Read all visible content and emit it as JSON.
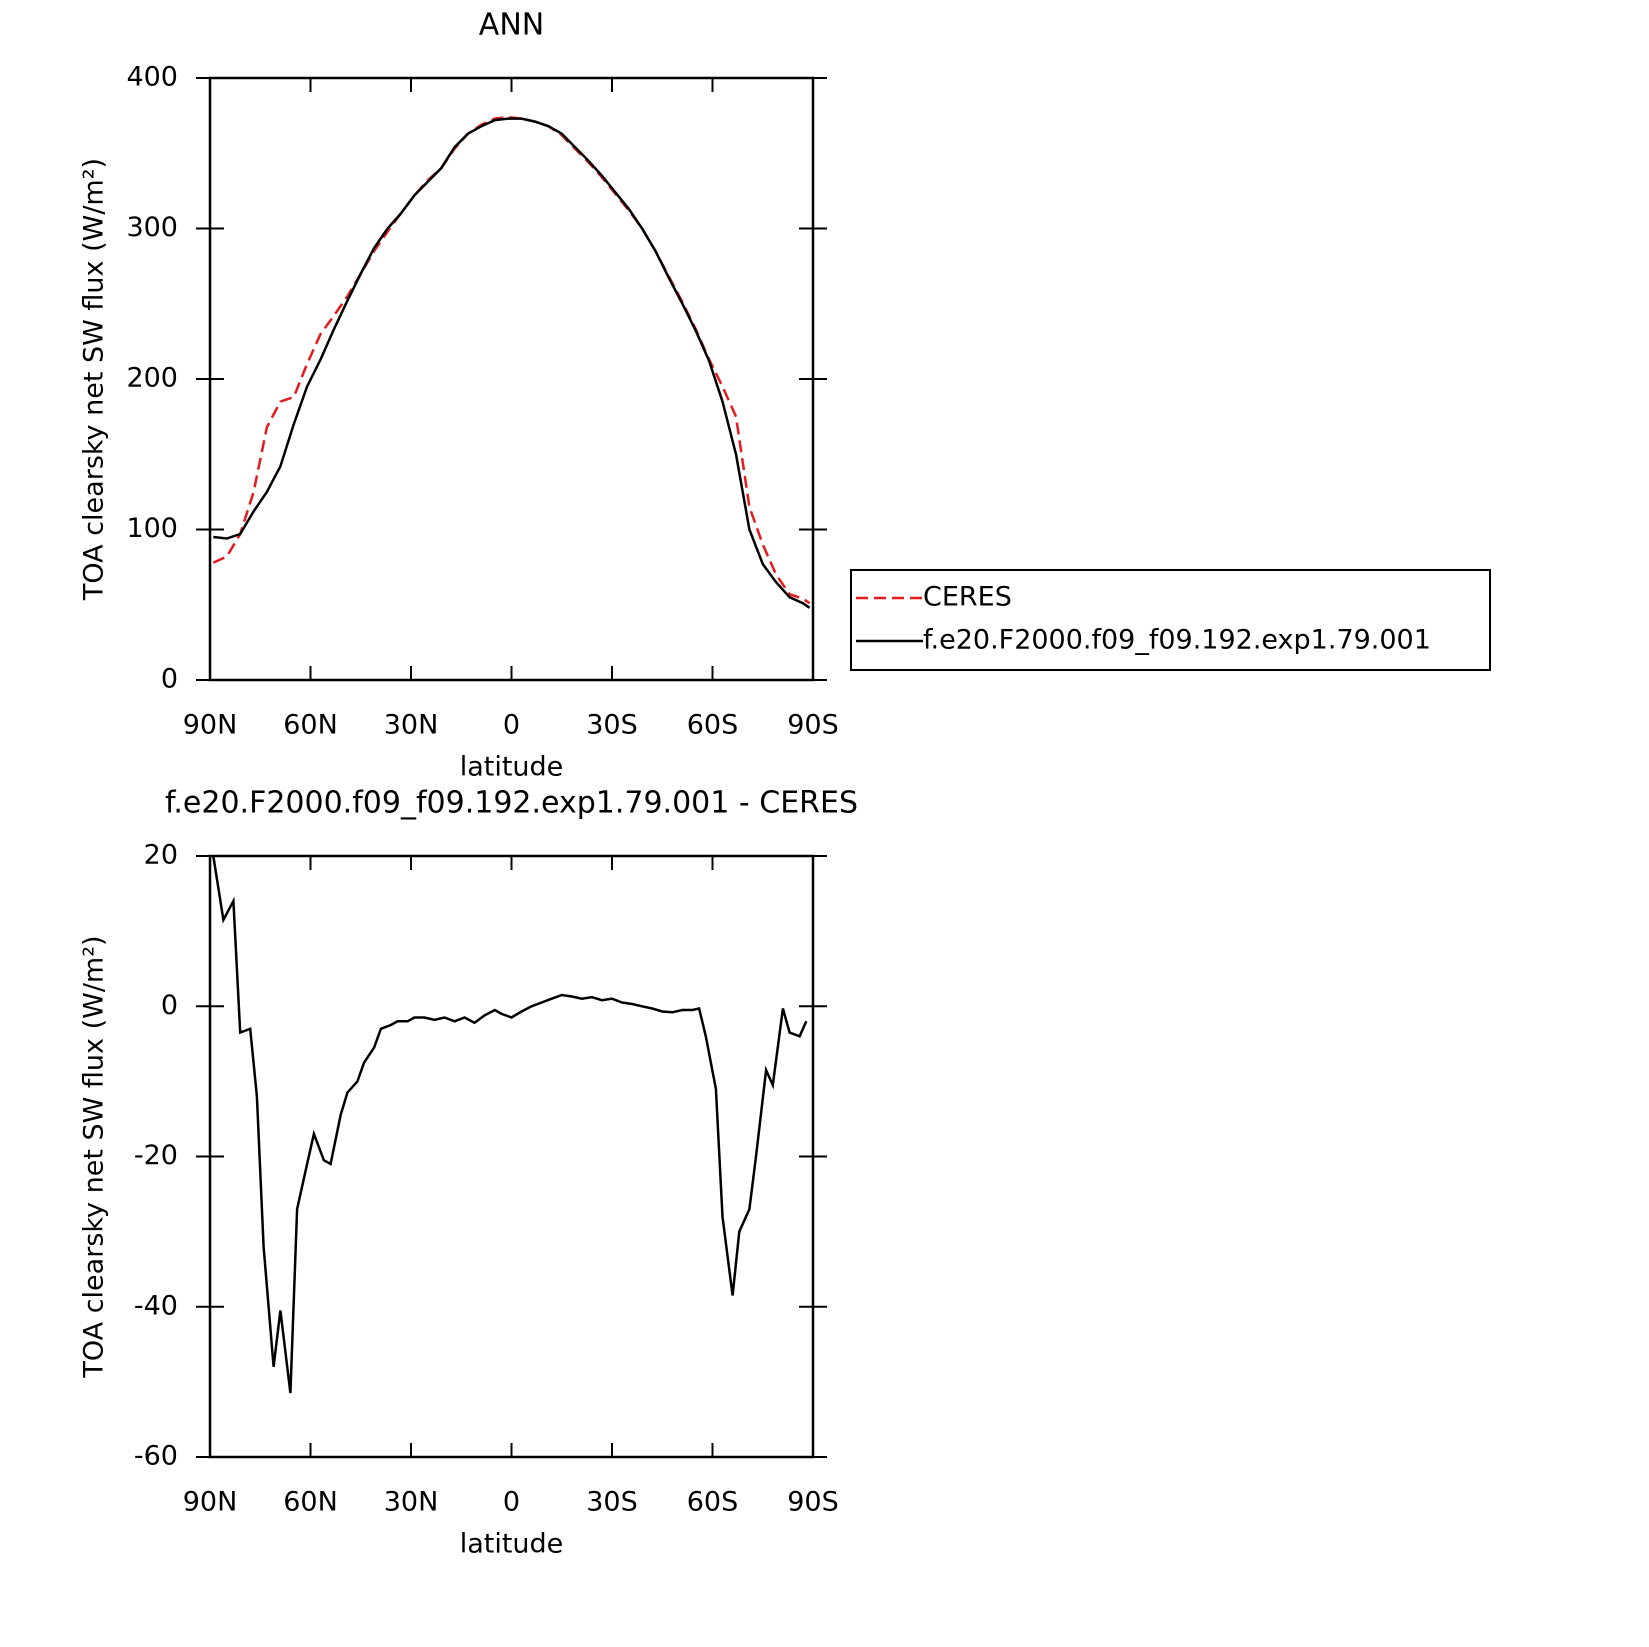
{
  "chart_data": [
    {
      "type": "line",
      "title": "ANN",
      "xlabel": "latitude",
      "ylabel": "TOA clearsky net SW flux (W/m²)",
      "x": [
        89,
        85,
        81,
        77,
        73,
        69,
        65,
        61,
        57,
        53,
        49,
        45,
        41,
        37,
        33,
        29,
        25,
        21,
        17,
        13,
        9,
        5,
        1,
        -3,
        -7,
        -11,
        -15,
        -19,
        -23,
        -27,
        -31,
        -35,
        -39,
        -43,
        -47,
        -51,
        -55,
        -59,
        -63,
        -67,
        -71,
        -75,
        -79,
        -83,
        -87,
        -89
      ],
      "series": [
        {
          "name": "CERES",
          "color": "#e41a1c",
          "dash": true,
          "values": [
            78,
            82,
            97,
            125,
            168,
            185,
            188,
            210,
            230,
            242,
            255,
            270,
            285,
            298,
            310,
            322,
            332,
            340,
            353,
            363,
            369,
            373,
            374,
            373,
            371,
            368,
            362,
            353,
            344,
            334,
            323,
            312,
            300,
            285,
            268,
            251,
            233,
            213,
            195,
            175,
            115,
            90,
            70,
            57,
            54,
            51
          ]
        },
        {
          "name": "f.e20.F2000.f09_f09.192.exp1.79.001",
          "color": "#000000",
          "dash": false,
          "values": [
            95,
            94,
            97,
            112,
            125,
            142,
            170,
            195,
            213,
            233,
            252,
            270,
            287,
            300,
            310,
            322,
            331,
            340,
            354,
            363,
            368,
            372,
            373,
            373,
            371,
            368,
            363,
            354,
            345,
            335,
            324,
            313,
            300,
            285,
            267,
            250,
            232,
            212,
            185,
            150,
            100,
            77,
            65,
            55,
            51,
            48
          ]
        }
      ],
      "xlim": [
        90,
        -90
      ],
      "xticks": [
        {
          "value": 90,
          "label": "90N"
        },
        {
          "value": 60,
          "label": "60N"
        },
        {
          "value": 30,
          "label": "30N"
        },
        0,
        {
          "value": -30,
          "label": "30S"
        },
        {
          "value": -60,
          "label": "60S"
        },
        {
          "value": -90,
          "label": "90S"
        }
      ],
      "ylim": [
        0,
        400
      ],
      "yticks": [
        0,
        100,
        200,
        300,
        400
      ],
      "legend": "right"
    },
    {
      "type": "line",
      "title": "f.e20.F2000.f09_f09.192.exp1.79.001 - CERES",
      "xlabel": "latitude",
      "ylabel": "TOA clearsky net SW flux (W/m²)",
      "x": [
        89,
        86,
        83,
        81,
        78,
        76,
        74,
        71,
        69,
        66,
        64,
        61,
        59,
        56,
        54,
        51,
        49,
        46,
        44,
        41,
        39,
        36,
        34,
        31,
        29,
        26,
        23,
        20,
        17,
        14,
        11,
        8,
        5,
        3,
        0,
        -3,
        -6,
        -9,
        -12,
        -15,
        -18,
        -21,
        -24,
        -27,
        -30,
        -33,
        -36,
        -39,
        -42,
        -45,
        -48,
        -51,
        -54,
        -56,
        -58,
        -61,
        -63,
        -66,
        -68,
        -71,
        -73,
        -76,
        -78,
        -81,
        -83,
        -86,
        -88
      ],
      "series": [
        {
          "color": "#000000",
          "dash": false,
          "values": [
            20,
            11.5,
            14,
            -3.5,
            -3,
            -12,
            -32,
            -48,
            -40.5,
            -51.5,
            -27,
            -21,
            -17,
            -20.5,
            -21,
            -14.5,
            -11.5,
            -10,
            -7.5,
            -5.5,
            -3,
            -2.5,
            -2,
            -2,
            -1.5,
            -1.5,
            -1.8,
            -1.5,
            -2,
            -1.5,
            -2.2,
            -1.2,
            -0.5,
            -1,
            -1.5,
            -0.7,
            0,
            0.5,
            1,
            1.5,
            1.3,
            1,
            1.2,
            0.8,
            1,
            0.5,
            0.3,
            0,
            -0.3,
            -0.7,
            -0.8,
            -0.5,
            -0.5,
            -0.3,
            -4,
            -11,
            -28,
            -38.5,
            -30,
            -27,
            -20,
            -8.5,
            -10.5,
            -0.3,
            -3.5,
            -4,
            -2
          ]
        }
      ],
      "xlim": [
        90,
        -90
      ],
      "xticks": [
        {
          "value": 90,
          "label": "90N"
        },
        {
          "value": 60,
          "label": "60N"
        },
        {
          "value": 30,
          "label": "30N"
        },
        0,
        {
          "value": -30,
          "label": "30S"
        },
        {
          "value": -60,
          "label": "60S"
        },
        {
          "value": -90,
          "label": "90S"
        }
      ],
      "ylim": [
        -60,
        20
      ],
      "yticks": [
        -60,
        -40,
        -20,
        0,
        20
      ]
    }
  ]
}
